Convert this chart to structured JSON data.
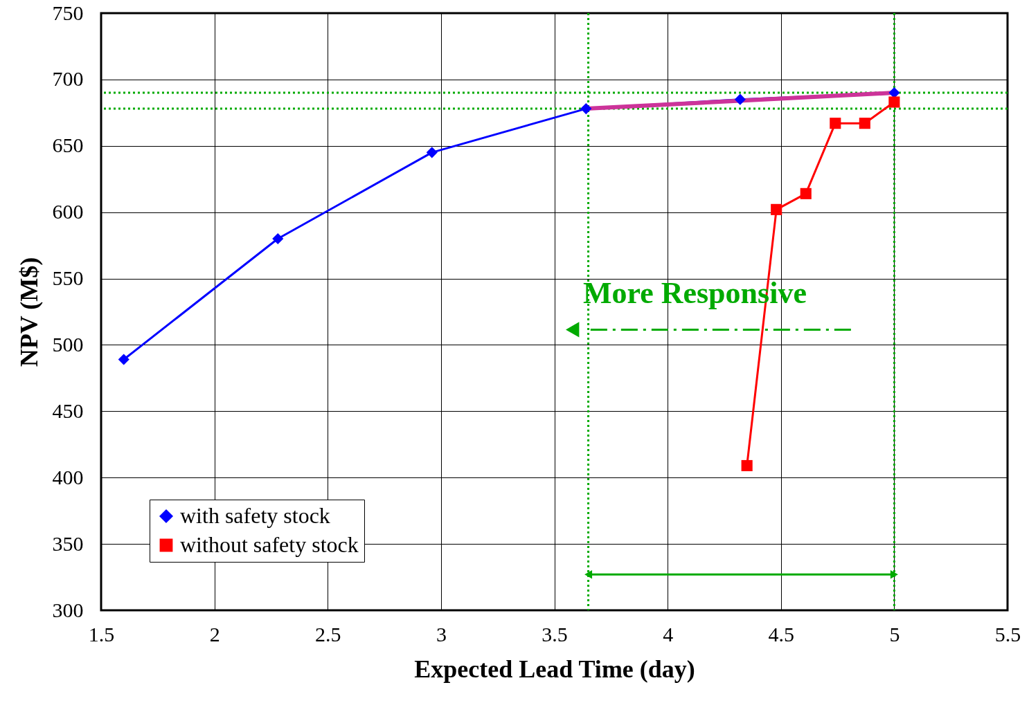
{
  "chart_data": {
    "type": "line",
    "xlabel": "Expected Lead Time (day)",
    "ylabel": "NPV (M$)",
    "xlim": [
      1.5,
      5.5
    ],
    "xticks": [
      1.5,
      2,
      2.5,
      3,
      3.5,
      4,
      4.5,
      5,
      5.5
    ],
    "ylim": [
      300,
      750
    ],
    "yticks": [
      300,
      350,
      400,
      450,
      500,
      550,
      600,
      650,
      700,
      750
    ],
    "grid": true,
    "legend": "bottom left",
    "line_style": "solid",
    "series": [
      {
        "name": "with safety stock",
        "color": "#0000ff",
        "marker": "diamond",
        "x": [
          1.6,
          2.28,
          2.96,
          3.64,
          4.32,
          5.0
        ],
        "values": [
          489,
          580,
          645,
          678,
          685,
          690
        ]
      },
      {
        "name": "without safety stock",
        "color": "#ff0000",
        "marker": "square",
        "x": [
          4.35,
          4.48,
          4.61,
          4.74,
          4.87,
          5.0
        ],
        "values": [
          409,
          602,
          614,
          667,
          667,
          683
        ]
      },
      {
        "color": "#cc3399",
        "marker": "none",
        "x": [
          3.64,
          5.0
        ],
        "values": [
          678,
          690
        ]
      }
    ],
    "ref_lines": [
      {
        "axis": "x",
        "value": 3.65,
        "color": "#00aa00",
        "line_style": "dotted"
      },
      {
        "axis": "x",
        "value": 5.0,
        "color": "#00aa00",
        "line_style": "dotted"
      },
      {
        "axis": "y",
        "value": 690,
        "color": "#00aa00",
        "line_style": "dotted"
      },
      {
        "axis": "y",
        "value": 678,
        "color": "#00aa00",
        "line_style": "dotted"
      }
    ],
    "annotations": [
      "More Responsive"
    ]
  }
}
